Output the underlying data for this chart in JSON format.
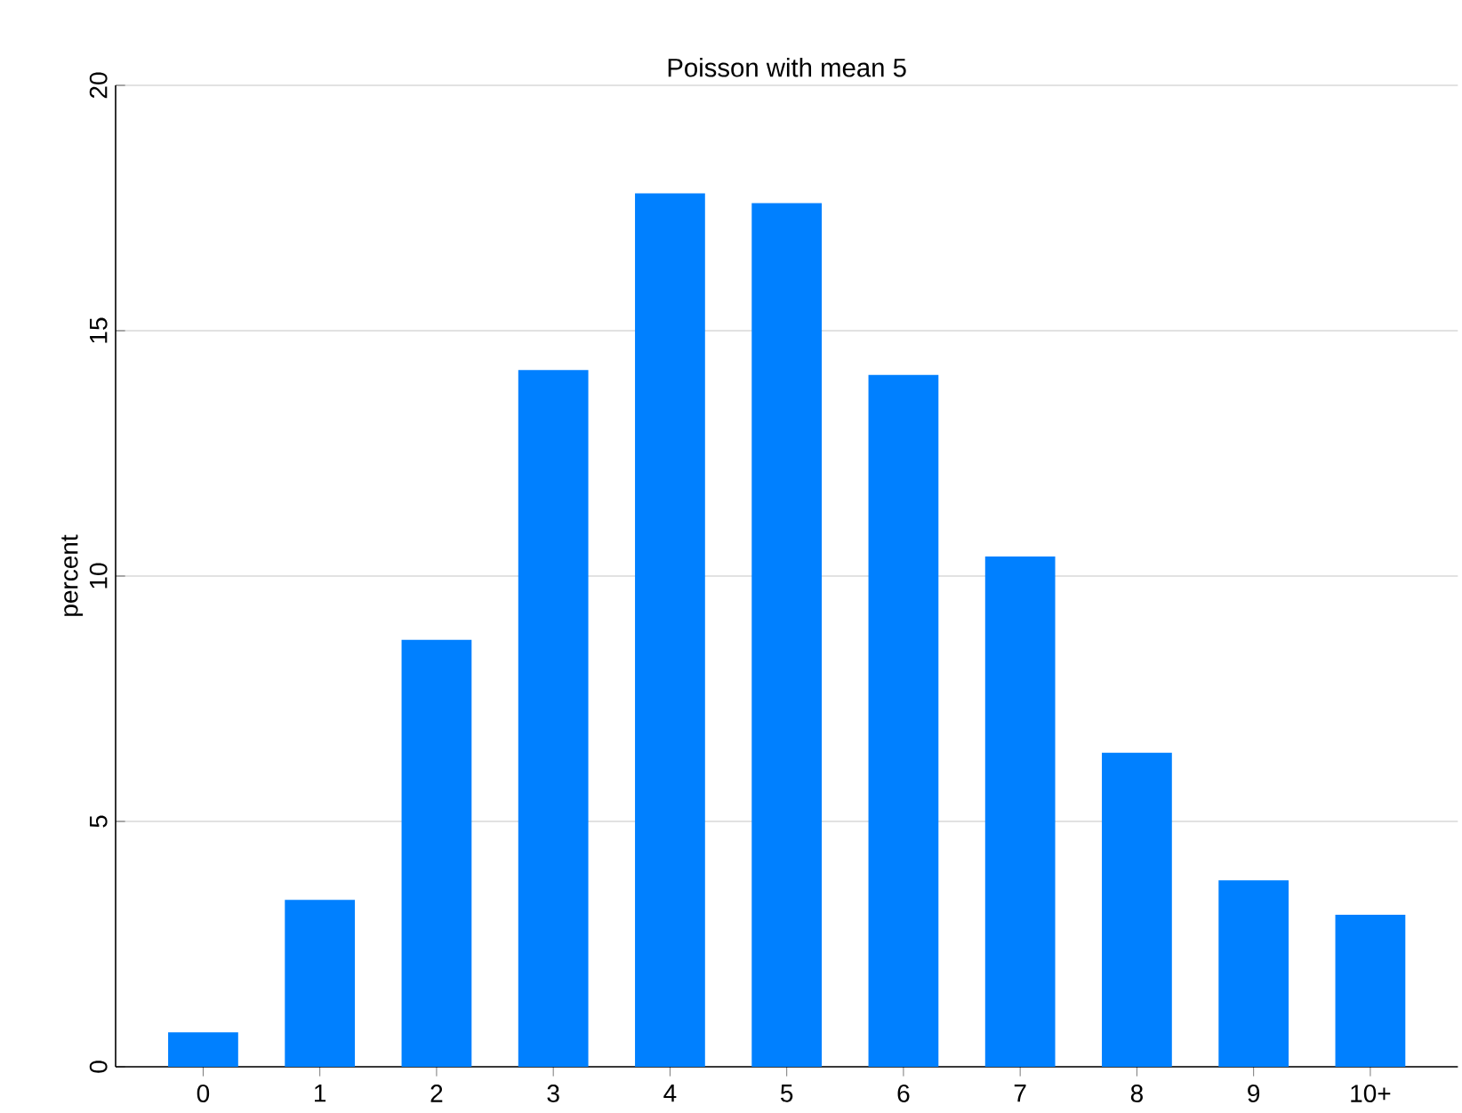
{
  "chart_data": {
    "type": "bar",
    "title": "Poisson with mean 5",
    "ylabel": "percent",
    "categories": [
      "0",
      "1",
      "2",
      "3",
      "4",
      "5",
      "6",
      "7",
      "8",
      "9",
      "10+"
    ],
    "values": [
      0.7,
      3.4,
      8.7,
      14.2,
      17.8,
      17.6,
      14.1,
      10.4,
      6.4,
      3.8,
      3.1
    ],
    "color": "#0080ff",
    "ylim": [
      0,
      20
    ],
    "yticks": [
      0,
      5,
      10,
      15,
      20
    ],
    "grid": "y"
  }
}
